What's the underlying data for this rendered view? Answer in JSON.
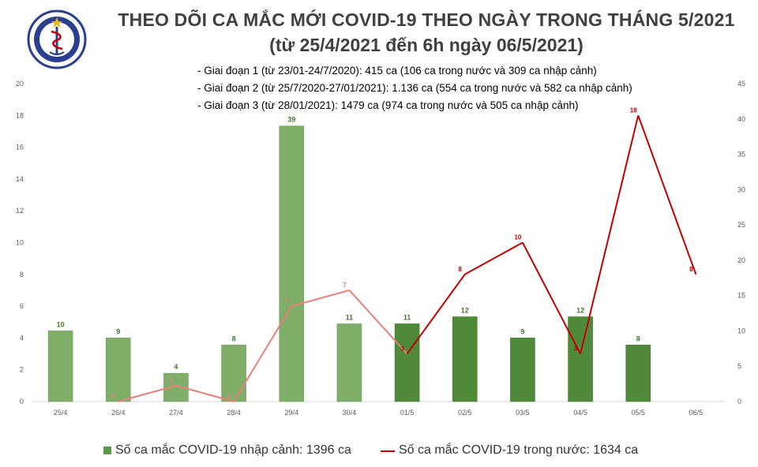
{
  "header": {
    "title_line1": "THEO DÕI CA MẮC MỚI COVID-19 THEO NGÀY TRONG THÁNG 5/2021",
    "title_line2": "(từ 25/4/2021 đến 6h ngày 06/5/2021)",
    "logo_text": "BỘ Y TẾ · MINISTRY OF HEALTH",
    "notes": [
      "- Giai đoạn 1 (từ 23/01-24/7/2020): 415 ca (106 ca trong nước và 309 ca nhập cảnh)",
      "- Giai đoạn 2 (từ 25/7/2020-27/01/2021): 1.136 ca (554 ca trong nước và 582 ca nhập cảnh)",
      "- Giai đoạn 3 (từ 28/01/2021): 1479 ca (974 ca trong nước và 505 ca nhập cảnh)"
    ]
  },
  "legend": {
    "bar_label": "Số ca mắc COVID-19 nhập cảnh: 1396 ca",
    "line_label": "Số ca mắc COVID-19 trong nước: 1634 ca"
  },
  "chart_data": {
    "type": "bar",
    "categories": [
      "25/4",
      "26/4",
      "27/4",
      "28/4",
      "29/4",
      "30/4",
      "01/5",
      "02/5",
      "03/5",
      "04/5",
      "05/5",
      "06/5"
    ],
    "bar_series": {
      "name": "Số ca mắc COVID-19 nhập cảnh: 1396 ca",
      "values": [
        10,
        9,
        4,
        8,
        39,
        11,
        11,
        12,
        9,
        12,
        8,
        null
      ],
      "labels": [
        "10",
        "9",
        "4",
        "8",
        "39",
        "11",
        "11",
        "12",
        "9",
        "12",
        "8",
        ""
      ],
      "color_light": "#7fae68",
      "color_dark": "#4f8a3a"
    },
    "line_series": {
      "name": "Số ca mắc COVID-19 trong nước: 1634 ca",
      "values": [
        null,
        0,
        1,
        0,
        6,
        7,
        3,
        8,
        10,
        3,
        18,
        8
      ],
      "labels": [
        "",
        "0",
        "1",
        "0",
        "6",
        "7",
        "3",
        "8",
        "10",
        "3",
        "18",
        "8"
      ],
      "color_light": "#e8807a",
      "color_dark": "#c00000"
    },
    "y_left": {
      "min": 0,
      "max": 20,
      "ticks": [
        "0",
        "2",
        "4",
        "6",
        "8",
        "10",
        "12",
        "14",
        "16",
        "18",
        "20"
      ]
    },
    "y_right": {
      "min": 0,
      "max": 45,
      "ticks": [
        "0",
        "5",
        "10",
        "15",
        "20",
        "25",
        "30",
        "35",
        "40",
        "45"
      ]
    },
    "legend_position": "bottom",
    "grid": false
  }
}
